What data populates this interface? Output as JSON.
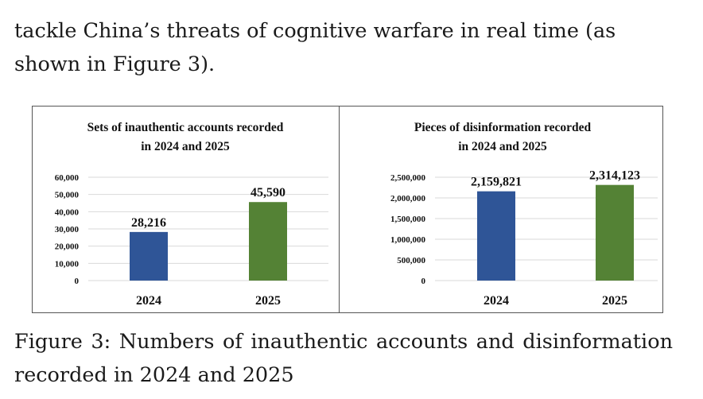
{
  "text": {
    "paragraph_end": "tackle China’s threats of cognitive warfare in real time (as shown in Figure 3).",
    "caption_line1": "Figure 3: Numbers of inauthentic accounts and disinformation",
    "caption_line2": "recorded in 2024 and 2025"
  },
  "colors": {
    "bar_2024": "#2f5597",
    "bar_2025": "#548235",
    "grid": "#d9d9d9"
  },
  "chart_data": [
    {
      "type": "bar",
      "title": [
        "Sets of inauthentic accounts recorded",
        "in 2024 and 2025"
      ],
      "categories": [
        "2024",
        "2025"
      ],
      "values": [
        28216,
        45590
      ],
      "value_labels": [
        "28,216",
        "45,590"
      ],
      "ylim": [
        0,
        60000
      ],
      "yticks": [
        0,
        10000,
        20000,
        30000,
        40000,
        50000,
        60000
      ],
      "ytick_labels": [
        "0",
        "10,000",
        "20,000",
        "30,000",
        "40,000",
        "50,000",
        "60,000"
      ],
      "xlabel": "",
      "ylabel": "",
      "grid": true
    },
    {
      "type": "bar",
      "title": [
        "Pieces of disinformation recorded",
        "in 2024 and 2025"
      ],
      "categories": [
        "2024",
        "2025"
      ],
      "values": [
        2159821,
        2314123
      ],
      "value_labels": [
        "2,159,821",
        "2,314,123"
      ],
      "ylim": [
        0,
        2500000
      ],
      "yticks": [
        0,
        500000,
        1000000,
        1500000,
        2000000,
        2500000
      ],
      "ytick_labels": [
        "0",
        "500,000",
        "1,000,000",
        "1,500,000",
        "2,000,000",
        "2,500,000"
      ],
      "xlabel": "",
      "ylabel": "",
      "grid": true
    }
  ]
}
